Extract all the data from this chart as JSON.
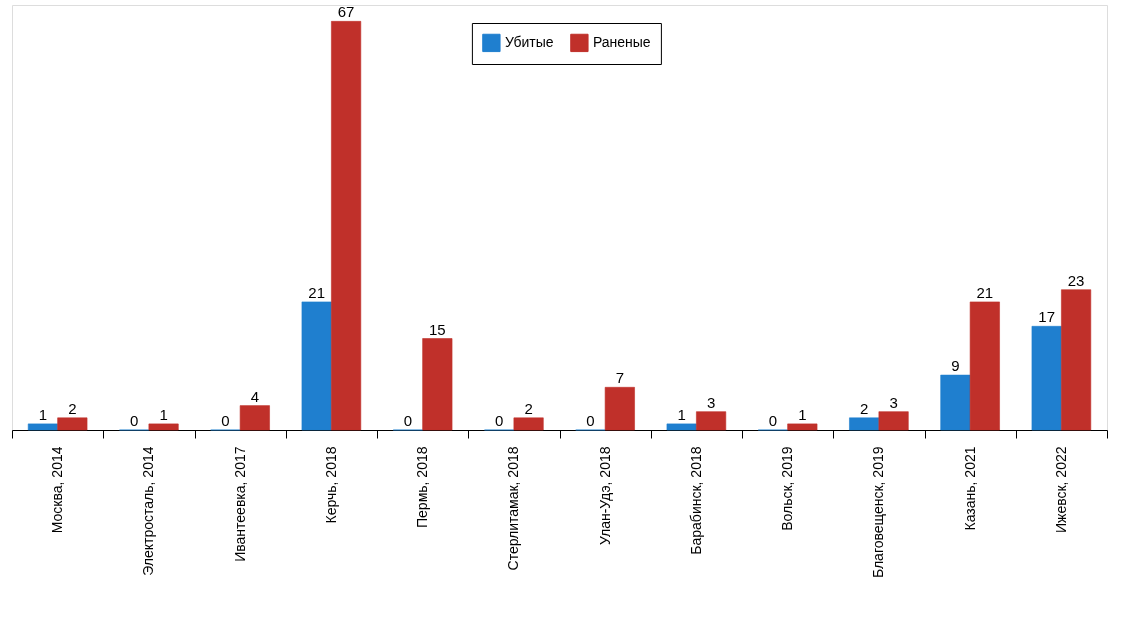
{
  "chart_data": {
    "type": "bar",
    "categories": [
      "Москва, 2014",
      "Электросталь, 2014",
      "Ивантеевка, 2017",
      "Керчь, 2018",
      "Пермь, 2018",
      "Стерлитамак, 2018",
      "Улан-Удэ, 2018",
      "Барабинск, 2018",
      "Вольск, 2019",
      "Благовещенск, 2019",
      "Казань, 2021",
      "Ижевск, 2022"
    ],
    "series": [
      {
        "name": "Убитые",
        "color": "#1f7fcf",
        "values": [
          1,
          0,
          0,
          21,
          0,
          0,
          0,
          1,
          0,
          2,
          9,
          17
        ]
      },
      {
        "name": "Раненые",
        "color": "#c0302a",
        "values": [
          2,
          1,
          4,
          67,
          15,
          2,
          7,
          3,
          1,
          3,
          21,
          23
        ]
      }
    ],
    "data_labels": true,
    "legend": "top",
    "grid": false
  }
}
